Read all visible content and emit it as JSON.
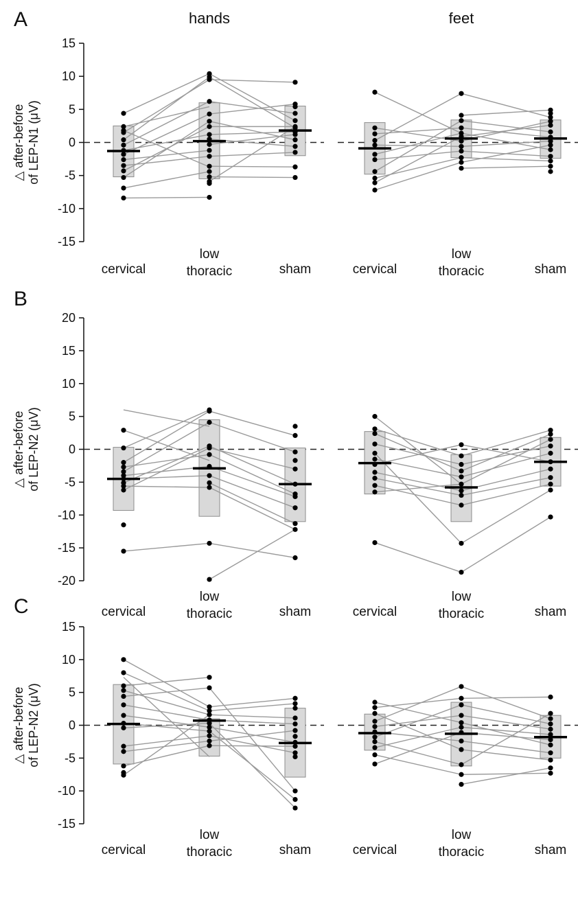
{
  "figure": {
    "column_titles": [
      "hands",
      "feet"
    ]
  },
  "chart_data": [
    {
      "panel": "A",
      "type": "scatter",
      "column": "hands",
      "ylabel": [
        "△ after-before",
        "of LEP-N1 (μV)"
      ],
      "ylim": [
        -15,
        15
      ],
      "yticks": [
        -15,
        -10,
        -5,
        0,
        5,
        10,
        15
      ],
      "categories": [
        "cervical",
        [
          "low",
          "thoracic"
        ],
        "sham"
      ],
      "bars": [
        {
          "low": -5.2,
          "high": 2.5
        },
        {
          "low": -5.5,
          "high": 6.0
        },
        {
          "low": -2.0,
          "high": 5.5
        }
      ],
      "means": [
        -1.3,
        0.2,
        1.8
      ],
      "points": [
        [
          4.4,
          2.4,
          1.8,
          1.5,
          0.4,
          -0.4,
          -1.2,
          -1.8,
          -2.6,
          -3.5,
          -4.3,
          -5.3,
          -6.9,
          -8.4
        ],
        [
          10.4,
          9.9,
          9.5,
          6.2,
          4.3,
          3.2,
          2.4,
          1.2,
          0.5,
          -0.3,
          -1.2,
          -2.1,
          -3.6,
          -4.4,
          -5.2,
          -5.9,
          -6.2,
          -8.3
        ],
        [
          9.1,
          5.8,
          5.4,
          4.4,
          3.3,
          2.4,
          2.2,
          1.6,
          1.2,
          0.4,
          -0.6,
          -1.5,
          -3.7,
          -5.3
        ]
      ],
      "lines": [
        [
          4.4,
          10.4
        ],
        [
          2.4,
          5.4
        ],
        [
          1.8,
          -3.7
        ],
        [
          1.5,
          9.5
        ],
        [
          0.4,
          9.9
        ],
        [
          -0.4,
          6.2
        ],
        [
          -1.2,
          1.2
        ],
        [
          -1.8,
          4.3
        ],
        [
          -2.6,
          -1.2
        ],
        [
          -3.5,
          -2.1
        ],
        [
          -4.3,
          2.4
        ],
        [
          -5.3,
          3.2
        ],
        [
          -6.9,
          -4.4
        ],
        [
          -8.4,
          -8.3
        ],
        [
          10.4,
          3.3
        ],
        [
          9.9,
          2.2
        ],
        [
          9.5,
          9.1
        ],
        [
          6.2,
          4.4
        ],
        [
          4.3,
          5.8
        ],
        [
          3.2,
          0.4
        ],
        [
          2.4,
          2.4
        ],
        [
          1.2,
          1.6
        ],
        [
          0.5,
          -0.6
        ],
        [
          -0.3,
          1.2
        ],
        [
          -2.1,
          -1.5
        ],
        [
          -3.6,
          -3.7
        ],
        [
          -5.2,
          -5.3
        ],
        [
          -5.9,
          2.4
        ]
      ]
    },
    {
      "panel": "A",
      "type": "scatter",
      "column": "feet",
      "ylim": [
        -15,
        15
      ],
      "categories": [
        "cervical",
        [
          "low",
          "thoracic"
        ],
        "sham"
      ],
      "bars": [
        {
          "low": -4.8,
          "high": 3.0
        },
        {
          "low": -2.3,
          "high": 3.4
        },
        {
          "low": -2.4,
          "high": 3.4
        }
      ],
      "means": [
        -0.9,
        0.6,
        0.6
      ],
      "points": [
        [
          7.6,
          2.2,
          1.3,
          0.3,
          -0.4,
          -1.8,
          -2.6,
          -4.4,
          -5.4,
          -6.1,
          -7.2
        ],
        [
          7.4,
          4.1,
          3.3,
          2.2,
          1.4,
          0.9,
          0.2,
          -0.6,
          -1.3,
          -2.3,
          -3.0,
          -3.9
        ],
        [
          4.9,
          4.4,
          3.8,
          3.2,
          2.6,
          1.6,
          0.8,
          0.2,
          -0.4,
          -1.1,
          -2.1,
          -2.8,
          -3.6,
          -4.4
        ]
      ],
      "lines": [
        [
          7.6,
          1.4
        ],
        [
          2.2,
          0.2
        ],
        [
          1.3,
          2.2
        ],
        [
          0.3,
          7.4
        ],
        [
          -0.4,
          -0.6
        ],
        [
          -1.8,
          1.4
        ],
        [
          -2.6,
          -1.3
        ],
        [
          -4.4,
          3.3
        ],
        [
          -5.4,
          -2.3
        ],
        [
          -6.1,
          0.9
        ],
        [
          -7.2,
          -3.0
        ],
        [
          7.4,
          3.8
        ],
        [
          4.1,
          4.9
        ],
        [
          3.3,
          1.6
        ],
        [
          2.2,
          0.8
        ],
        [
          1.4,
          -1.1
        ],
        [
          0.9,
          2.6
        ],
        [
          0.2,
          3.2
        ],
        [
          -0.6,
          0.2
        ],
        [
          -1.3,
          -2.1
        ],
        [
          -2.3,
          -2.8
        ],
        [
          -3.0,
          -0.4
        ],
        [
          -3.9,
          -3.6
        ]
      ]
    },
    {
      "panel": "B",
      "type": "scatter",
      "column": "hands",
      "ylabel": [
        "△ after-before",
        "of LEP-N2 (μV)"
      ],
      "ylim": [
        -20,
        20
      ],
      "yticks": [
        -20,
        -15,
        -10,
        -5,
        0,
        5,
        10,
        15,
        20
      ],
      "categories": [
        "cervical",
        [
          "low",
          "thoracic"
        ],
        "sham"
      ],
      "bars": [
        {
          "low": -9.3,
          "high": 0.3
        },
        {
          "low": -10.2,
          "high": 4.5
        },
        {
          "low": -11.0,
          "high": 0.2
        }
      ],
      "means": [
        -4.5,
        -2.9,
        -5.3
      ],
      "points": [
        [
          2.9,
          0.2,
          -2.0,
          -2.7,
          -3.4,
          -4.0,
          -4.5,
          -5.1,
          -5.6,
          -6.2,
          -11.5,
          -15.5
        ],
        [
          6.0,
          5.8,
          4.1,
          0.5,
          0.2,
          -0.8,
          -2.6,
          -4.0,
          -5.1,
          -5.8,
          -14.3,
          -19.8
        ],
        [
          3.5,
          2.1,
          -0.4,
          -1.7,
          -3.0,
          -5.3,
          -6.8,
          -7.2,
          -8.9,
          -11.3,
          -12.2,
          -16.5
        ]
      ],
      "lines": [
        [
          2.9,
          -1.7
        ],
        [
          0.2,
          6.0
        ],
        [
          -2.0,
          5.8
        ],
        [
          -2.7,
          -0.8
        ],
        [
          -3.4,
          4.1
        ],
        [
          -4.0,
          -2.6
        ],
        [
          -4.5,
          -4.0
        ],
        [
          -5.1,
          0.5
        ],
        [
          -5.6,
          -5.8
        ],
        [
          -6.2,
          0.2
        ],
        [
          -15.5,
          -14.3
        ],
        [
          6.0,
          3.5
        ],
        [
          5.8,
          2.1
        ],
        [
          4.1,
          -0.4
        ],
        [
          0.5,
          -5.3
        ],
        [
          0.2,
          -3.0
        ],
        [
          -0.8,
          -6.8
        ],
        [
          -2.6,
          -7.2
        ],
        [
          -4.0,
          -8.9
        ],
        [
          -5.1,
          -11.3
        ],
        [
          -5.8,
          -12.2
        ],
        [
          -14.3,
          -16.5
        ],
        [
          -19.8,
          -12.2
        ]
      ]
    },
    {
      "panel": "B",
      "type": "scatter",
      "column": "feet",
      "ylim": [
        -20,
        20
      ],
      "categories": [
        "cervical",
        [
          "low",
          "thoracic"
        ],
        "sham"
      ],
      "bars": [
        {
          "low": -6.8,
          "high": 2.7
        },
        {
          "low": -11.0,
          "high": -0.8
        },
        {
          "low": -5.6,
          "high": 1.8
        }
      ],
      "means": [
        -2.1,
        -5.8,
        -1.9
      ],
      "points": [
        [
          5.0,
          3.1,
          2.4,
          0.8,
          -0.6,
          -1.5,
          -2.3,
          -3.5,
          -4.4,
          -5.5,
          -6.5,
          -14.2
        ],
        [
          0.7,
          -1.0,
          -2.3,
          -3.3,
          -4.2,
          -5.3,
          -6.3,
          -7.0,
          -8.5,
          -14.3,
          -18.7
        ],
        [
          2.9,
          2.3,
          1.5,
          0.5,
          -0.6,
          -1.9,
          -3.0,
          -4.3,
          -5.3,
          -6.2,
          -10.3
        ]
      ],
      "lines": [
        [
          5.0,
          -5.3
        ],
        [
          3.1,
          -1.0
        ],
        [
          2.4,
          -3.3
        ],
        [
          0.8,
          -2.3
        ],
        [
          -0.6,
          -14.3
        ],
        [
          -1.5,
          -4.2
        ],
        [
          -2.3,
          0.7
        ],
        [
          -3.5,
          -6.3
        ],
        [
          -4.4,
          -7.0
        ],
        [
          -5.5,
          -8.5
        ],
        [
          -6.5,
          -5.3
        ],
        [
          -14.2,
          -18.7
        ],
        [
          0.7,
          -1.9
        ],
        [
          -1.0,
          2.9
        ],
        [
          -2.3,
          0.5
        ],
        [
          -3.3,
          2.3
        ],
        [
          -4.2,
          -0.6
        ],
        [
          -5.3,
          1.5
        ],
        [
          -6.3,
          -3.0
        ],
        [
          -7.0,
          -4.3
        ],
        [
          -8.5,
          -5.3
        ],
        [
          -14.3,
          -6.2
        ],
        [
          -18.7,
          -10.3
        ]
      ]
    },
    {
      "panel": "C",
      "type": "scatter",
      "column": "hands",
      "ylabel": [
        "△ after-before",
        "of LEP-N2 (μV)"
      ],
      "ylim": [
        -15,
        15
      ],
      "yticks": [
        -15,
        -10,
        -5,
        0,
        5,
        10,
        15
      ],
      "categories": [
        "cervical",
        [
          "low",
          "thoracic"
        ],
        "sham"
      ],
      "bars": [
        {
          "low": -5.9,
          "high": 6.2
        },
        {
          "low": -4.7,
          "high": 1.0
        },
        {
          "low": -7.9,
          "high": 2.6
        }
      ],
      "means": [
        0.2,
        0.7,
        -2.7
      ],
      "points": [
        [
          10.0,
          8.0,
          6.0,
          5.3,
          4.4,
          3.1,
          1.5,
          0.3,
          -0.4,
          -3.2,
          -4.0,
          -6.2,
          -7.2,
          -7.6
        ],
        [
          7.3,
          5.7,
          2.8,
          2.2,
          1.6,
          0.8,
          0.3,
          -0.3,
          -0.9,
          -1.6,
          -2.4,
          -3.1
        ],
        [
          4.1,
          3.3,
          2.6,
          1.1,
          0.2,
          -0.8,
          -1.7,
          -2.6,
          -3.2,
          -4.2,
          -4.8,
          -10.0,
          -11.3,
          -12.6
        ]
      ],
      "lines": [
        [
          10.0,
          2.8
        ],
        [
          8.0,
          2.2
        ],
        [
          6.0,
          7.3
        ],
        [
          5.3,
          1.6
        ],
        [
          4.4,
          5.7
        ],
        [
          3.1,
          0.8
        ],
        [
          1.5,
          -0.3
        ],
        [
          0.3,
          -0.9
        ],
        [
          -0.4,
          0.3
        ],
        [
          -3.2,
          -1.6
        ],
        [
          -4.0,
          -2.4
        ],
        [
          -6.2,
          -3.1
        ],
        [
          -7.6,
          1.6
        ],
        [
          7.3,
          -4.8
        ],
        [
          5.7,
          -10.0
        ],
        [
          2.8,
          4.1
        ],
        [
          2.2,
          3.3
        ],
        [
          1.6,
          1.1
        ],
        [
          0.8,
          0.2
        ],
        [
          0.3,
          -12.6
        ],
        [
          -0.3,
          -2.6
        ],
        [
          -0.9,
          -11.3
        ],
        [
          -1.6,
          -4.2
        ],
        [
          -2.4,
          -0.8
        ],
        [
          -3.1,
          -3.2
        ]
      ]
    },
    {
      "panel": "C",
      "type": "scatter",
      "column": "feet",
      "ylim": [
        -15,
        15
      ],
      "categories": [
        "cervical",
        [
          "low",
          "thoracic"
        ],
        "sham"
      ],
      "bars": [
        {
          "low": -3.8,
          "high": 1.7
        },
        {
          "low": -6.2,
          "high": 3.5
        },
        {
          "low": -5.0,
          "high": 1.5
        }
      ],
      "means": [
        -1.2,
        -1.3,
        -1.8
      ],
      "points": [
        [
          3.5,
          2.7,
          1.8,
          0.6,
          -0.2,
          -1.0,
          -1.8,
          -2.5,
          -3.4,
          -4.5,
          -5.9
        ],
        [
          5.9,
          4.1,
          3.1,
          1.5,
          0.4,
          -0.3,
          -1.1,
          -2.4,
          -3.7,
          -6.0,
          -7.5,
          -9.0
        ],
        [
          4.3,
          1.8,
          1.0,
          0.2,
          -0.6,
          -1.4,
          -2.2,
          -3.0,
          -4.2,
          -5.3,
          -6.5,
          -7.3
        ]
      ],
      "lines": [
        [
          3.5,
          0.4
        ],
        [
          2.7,
          4.1
        ],
        [
          1.8,
          -3.7
        ],
        [
          0.6,
          5.9
        ],
        [
          -0.2,
          1.5
        ],
        [
          -1.0,
          -2.4
        ],
        [
          -1.8,
          3.1
        ],
        [
          -2.5,
          -6.0
        ],
        [
          -3.4,
          -0.3
        ],
        [
          -4.5,
          -7.5
        ],
        [
          -5.9,
          -1.1
        ],
        [
          5.9,
          1.0
        ],
        [
          4.1,
          4.3
        ],
        [
          3.1,
          0.2
        ],
        [
          1.5,
          -0.6
        ],
        [
          0.4,
          -3.0
        ],
        [
          -0.3,
          -1.4
        ],
        [
          -1.1,
          -2.2
        ],
        [
          -2.4,
          -4.2
        ],
        [
          -3.7,
          -5.3
        ],
        [
          -6.0,
          1.8
        ],
        [
          -7.5,
          -7.3
        ],
        [
          -9.0,
          -6.5
        ]
      ]
    }
  ],
  "colors": {
    "bar_fill": "#d9d9d9",
    "bar_stroke": "#8c8c8c",
    "line": "#9a9a9a",
    "point": "#000000",
    "mean": "#000000",
    "zero_line": "#222222",
    "axis": "#111111"
  }
}
